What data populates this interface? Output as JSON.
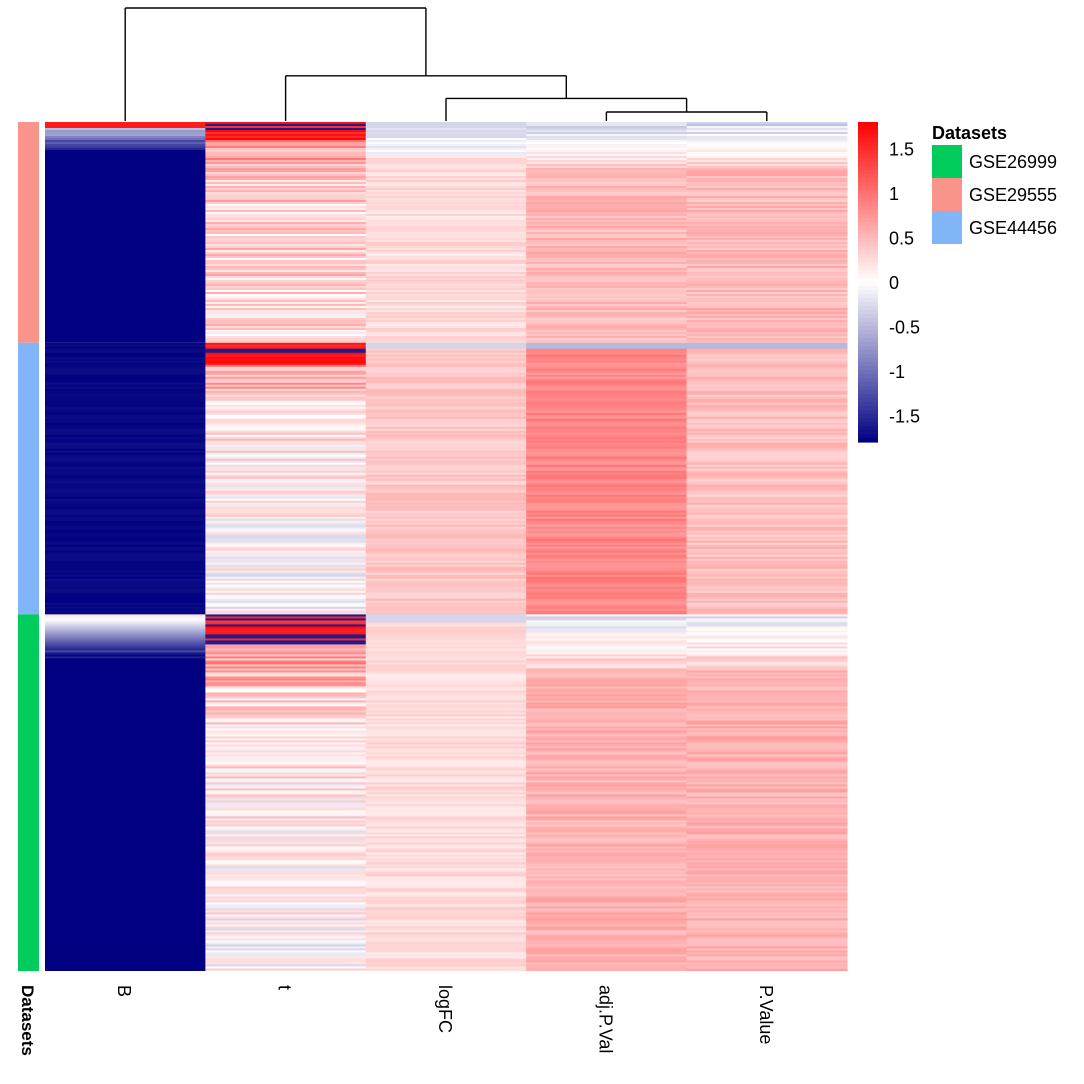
{
  "chart_data": {
    "type": "heatmap",
    "title": "",
    "columns": [
      "B",
      "t",
      "logFC",
      "adj.P.Val",
      "P.Value"
    ],
    "row_annotation": {
      "label": "Datasets",
      "groups": [
        {
          "name": "GSE29555",
          "color": "#f8948a",
          "row_fraction": 0.26
        },
        {
          "name": "GSE44456",
          "color": "#82b4f8",
          "row_fraction": 0.32
        },
        {
          "name": "GSE26999",
          "color": "#00cc5b",
          "row_fraction": 0.42
        }
      ]
    },
    "color_scale": {
      "min": -1.8,
      "max": 1.8,
      "low_color": "#000080",
      "mid_color": "#ffffff",
      "high_color": "#ff0000",
      "ticks": [
        1.5,
        1,
        0.5,
        0,
        -0.5,
        -1,
        -1.5
      ],
      "tick_labels": [
        "1.5",
        "1",
        "0.5",
        "0",
        "-0.5",
        "-1",
        "-1.5"
      ]
    },
    "block_values": {
      "GSE29555": {
        "B": -1.8,
        "t": 0.5,
        "logFC": 0.25,
        "adj.P.Val": 0.5,
        "P.Value": 0.5
      },
      "GSE44456": {
        "B": -1.8,
        "t": 0.3,
        "logFC": 0.4,
        "adj.P.Val": 0.85,
        "P.Value": 0.45
      },
      "GSE26999": {
        "B": -1.8,
        "t": 0.3,
        "logFC": 0.25,
        "adj.P.Val": 0.55,
        "P.Value": 0.55
      }
    },
    "block_profiles": {
      "GSE29555": {
        "B": "top red then blue",
        "t": "strong red at top fading",
        "logFC": "slightly blue at top"
      },
      "GSE44456": {
        "B": "dark blue",
        "t": "red top band then mixed",
        "logFC": "uniform light red"
      },
      "GSE26999": {
        "B": "blue gradient at top",
        "t": "red top band then mixed",
        "logFC": "uniform light red"
      }
    },
    "dendrogram": {
      "merge_order": [
        [
          "adj.P.Val",
          "P.Value"
        ],
        [
          "logFC",
          "adj.P.Val+P.Value"
        ],
        [
          "t",
          "logFC+adj.P.Val+P.Value"
        ],
        [
          "B",
          "rest"
        ]
      ],
      "merge_heights": [
        0.08,
        0.2,
        0.4,
        1.0
      ]
    },
    "legend": {
      "title": "Datasets",
      "entries": [
        "GSE26999",
        "GSE29555",
        "GSE44456"
      ],
      "colors": [
        "#00cc5b",
        "#f8948a",
        "#82b4f8"
      ],
      "placement": "right"
    }
  }
}
